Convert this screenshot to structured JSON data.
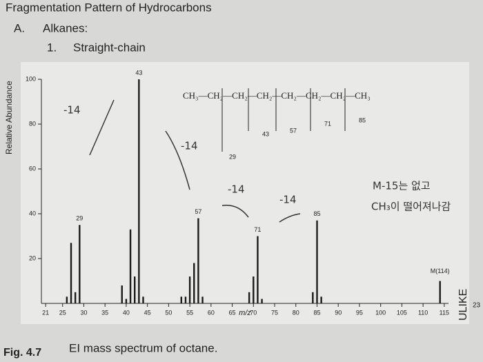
{
  "header": {
    "title": "Fragmentation Pattern of Hydrocarbons",
    "section_marker": "A.",
    "section": "Alkanes:",
    "subsection_marker": "1.",
    "subsection": "Straight-chain"
  },
  "chart_data": {
    "type": "bar",
    "series": [
      {
        "color": "#1a1a1a",
        "x": [
          26,
          27,
          28,
          29,
          39,
          40,
          41,
          42,
          43,
          44,
          53,
          54,
          55,
          56,
          57,
          58,
          69,
          70,
          71,
          72,
          84,
          85,
          86,
          114
        ],
        "values": [
          3,
          27,
          5,
          35,
          8,
          2,
          33,
          12,
          100,
          3,
          3,
          3,
          12,
          18,
          38,
          3,
          5,
          12,
          30,
          2,
          5,
          37,
          3,
          10
        ]
      }
    ],
    "labeled_peaks": [
      29,
      43,
      57,
      71,
      85
    ],
    "molecular_ion_label": "M(114)",
    "xlim": [
      20,
      116
    ],
    "xticks": [
      21,
      25,
      30,
      35,
      40,
      45,
      50,
      55,
      60,
      65,
      70,
      75,
      80,
      85,
      90,
      95,
      100,
      105,
      110,
      115
    ],
    "ylim": [
      0,
      100
    ],
    "yticks": [
      20,
      40,
      60,
      80,
      100
    ],
    "xlabel": "m/z",
    "ylabel": "Relative Abundance",
    "structure": "CH₃—CH₂—CH₂—CH₂—CH₂—CH₂—CH₂—CH₃",
    "fragments": [
      29,
      43,
      57,
      71,
      85
    ]
  },
  "notes": [
    "-14",
    "-14",
    "-14",
    "-14",
    "M-15는 없고",
    "CH₃이 떨어져나감"
  ],
  "caption": {
    "label": "Fig. 4.7",
    "text": "EI mass spectrum of octane."
  },
  "side": {
    "brand": "ULIKE",
    "page": "23"
  }
}
